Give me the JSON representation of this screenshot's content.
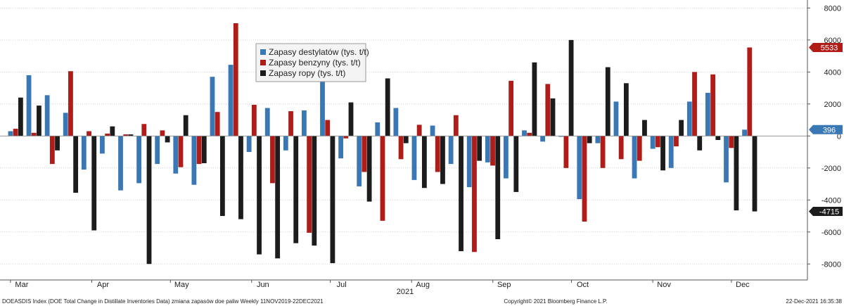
{
  "chart_data": {
    "type": "bar",
    "ylim": [
      -9000,
      8500
    ],
    "y_ticks": [
      8000,
      6000,
      4000,
      2000,
      0,
      -2000,
      -4000,
      -6000,
      -8000
    ],
    "y_tick_labels": [
      "8000",
      "6000",
      "4000",
      "2000",
      "0",
      "-2000",
      "-4000",
      "-6000",
      "-8000"
    ],
    "grid": true,
    "legend_position": "top-center",
    "year_label": "2021",
    "months": [
      "Mar",
      "Apr",
      "May",
      "Jun",
      "Jul",
      "Aug",
      "Sep",
      "Oct",
      "Nov",
      "Dec"
    ],
    "x": [
      "2021-03-03",
      "2021-03-10",
      "2021-03-17",
      "2021-03-24",
      "2021-03-31",
      "2021-04-07",
      "2021-04-14",
      "2021-04-21",
      "2021-04-28",
      "2021-05-05",
      "2021-05-12",
      "2021-05-19",
      "2021-05-26",
      "2021-06-02",
      "2021-06-09",
      "2021-06-16",
      "2021-06-23",
      "2021-06-30",
      "2021-07-07",
      "2021-07-14",
      "2021-07-21",
      "2021-07-28",
      "2021-08-04",
      "2021-08-11",
      "2021-08-18",
      "2021-08-25",
      "2021-09-01",
      "2021-09-08",
      "2021-09-15",
      "2021-09-22",
      "2021-09-29",
      "2021-10-06",
      "2021-10-13",
      "2021-10-20",
      "2021-10-27",
      "2021-11-03",
      "2021-11-10",
      "2021-11-17",
      "2021-11-24",
      "2021-12-01",
      "2021-12-08",
      "2021-12-15"
    ],
    "series": [
      {
        "name": "Zapasy destylatów (tys. t/t)",
        "color": "#3a78b5",
        "values": [
          300,
          3800,
          2550,
          1450,
          -2100,
          -1100,
          -3400,
          -2950,
          -1750,
          -2350,
          -3050,
          3700,
          4450,
          -1000,
          1750,
          -900,
          1600,
          3600,
          -1400,
          -3150,
          850,
          1750,
          -2750,
          650,
          -1750,
          -3200,
          -1650,
          -2650,
          350,
          -350,
          -50,
          -3950,
          -450,
          2150,
          -2650,
          -800,
          -2000,
          2150,
          2700,
          -2900,
          396,
          0
        ],
        "last_value_label": "396"
      },
      {
        "name": "Zapasy benzyny  (tys. t/t)",
        "color": "#b01c18",
        "values": [
          450,
          200,
          -1750,
          4050,
          300,
          150,
          100,
          750,
          350,
          -1950,
          -1750,
          1500,
          7050,
          1950,
          -2950,
          1550,
          -6050,
          1000,
          -150,
          -2250,
          -5300,
          -1450,
          700,
          -2250,
          1300,
          -7250,
          -1850,
          3450,
          200,
          3250,
          -2000,
          -5350,
          -2000,
          -1450,
          -1550,
          -700,
          -650,
          4000,
          3850,
          -750,
          5533,
          0
        ],
        "last_value_label": "5533"
      },
      {
        "name": "Zapasy ropy (tys. t/t)",
        "color": "#1c1c1c",
        "values": [
          2400,
          1900,
          -900,
          -3550,
          -5900,
          600,
          100,
          -8000,
          -400,
          1300,
          -1700,
          -5000,
          -5200,
          -7400,
          -7650,
          -6700,
          -6850,
          -7950,
          2100,
          -4100,
          3600,
          -450,
          -3250,
          -3000,
          -7200,
          -1550,
          -6450,
          -3500,
          4600,
          2350,
          6000,
          -450,
          4300,
          3300,
          1000,
          -2150,
          1000,
          -900,
          -250,
          -4650,
          -4715,
          0
        ],
        "last_value_label": "-4715"
      }
    ]
  },
  "footer": {
    "left": "DOEASDIS Index (DOE Total Change in Distillate Inventories Data) zmiana zapasów doe paliw  Weekly 11NOV2019-22DEC2021",
    "center": "Copyright© 2021 Bloomberg Finance L.P.",
    "right": "22-Dec-2021 16:35:38"
  }
}
